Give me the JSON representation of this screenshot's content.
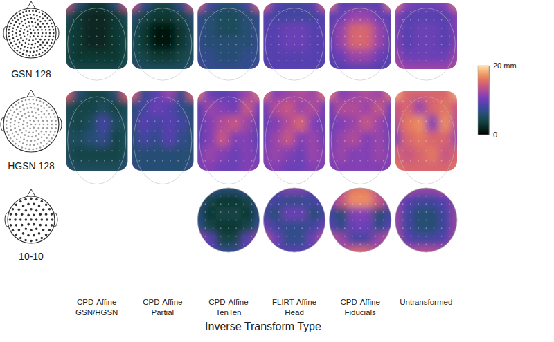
{
  "chart_data": {
    "type": "heatmap",
    "x_label": "Inverse Transform Type",
    "columns": [
      [
        "CPD-Affine",
        "GSN/HGSN"
      ],
      [
        "CPD-Affine",
        "Partial"
      ],
      [
        "CPD-Affine",
        "TenTen"
      ],
      [
        "FLIRT-Affine",
        "Head"
      ],
      [
        "CPD-Affine",
        "Fiducials"
      ],
      [
        "Untransformed"
      ]
    ],
    "color_range": [
      0,
      20
    ],
    "color_ticks": [
      0,
      {
        "value": 20,
        "label": "20 mm"
      }
    ],
    "rows": [
      {
        "name": "GSN 128",
        "maps": [
          [
            [
              14,
              6,
              3,
              3,
              6,
              14
            ],
            [
              5,
              3,
              2,
              2,
              3,
              5
            ],
            [
              4,
              3,
              2,
              2,
              3,
              4
            ],
            [
              4,
              3,
              2,
              2,
              3,
              4
            ],
            [
              4,
              3,
              3,
              3,
              3,
              4
            ],
            [
              5,
              4,
              4,
              4,
              4,
              5
            ]
          ],
          [
            [
              14,
              7,
              4,
              4,
              7,
              14
            ],
            [
              6,
              4,
              3,
              3,
              4,
              6
            ],
            [
              5,
              3,
              1,
              1,
              3,
              5
            ],
            [
              5,
              3,
              1,
              1,
              3,
              5
            ],
            [
              5,
              4,
              3,
              3,
              4,
              5
            ],
            [
              6,
              5,
              5,
              5,
              5,
              6
            ]
          ],
          [
            [
              15,
              8,
              6,
              6,
              8,
              15
            ],
            [
              7,
              6,
              5,
              5,
              6,
              7
            ],
            [
              7,
              6,
              5,
              5,
              6,
              7
            ],
            [
              7,
              6,
              6,
              6,
              6,
              7
            ],
            [
              7,
              7,
              6,
              6,
              7,
              7
            ],
            [
              8,
              7,
              7,
              7,
              7,
              8
            ]
          ],
          [
            [
              15,
              9,
              8,
              8,
              9,
              15
            ],
            [
              9,
              8,
              8,
              8,
              8,
              9
            ],
            [
              9,
              9,
              10,
              10,
              9,
              9
            ],
            [
              9,
              9,
              10,
              10,
              9,
              9
            ],
            [
              9,
              9,
              9,
              9,
              9,
              9
            ],
            [
              9,
              9,
              9,
              9,
              9,
              9
            ]
          ],
          [
            [
              16,
              9,
              9,
              9,
              9,
              16
            ],
            [
              9,
              10,
              12,
              12,
              10,
              9
            ],
            [
              9,
              12,
              15,
              15,
              12,
              9
            ],
            [
              9,
              12,
              15,
              15,
              12,
              9
            ],
            [
              9,
              10,
              12,
              12,
              10,
              9
            ],
            [
              9,
              9,
              9,
              9,
              9,
              9
            ]
          ],
          [
            [
              16,
              11,
              10,
              10,
              11,
              16
            ],
            [
              11,
              9,
              9,
              9,
              9,
              11
            ],
            [
              11,
              9,
              10,
              10,
              9,
              11
            ],
            [
              11,
              9,
              10,
              10,
              9,
              11
            ],
            [
              12,
              10,
              10,
              10,
              10,
              12
            ],
            [
              13,
              12,
              12,
              12,
              12,
              13
            ]
          ]
        ]
      },
      {
        "name": "HGSN 128",
        "maps": [
          [
            [
              15,
              6,
              4,
              4,
              6,
              15
            ],
            [
              5,
              4,
              4,
              5,
              4,
              5
            ],
            [
              5,
              4,
              5,
              8,
              5,
              5
            ],
            [
              5,
              5,
              6,
              7,
              4,
              5
            ],
            [
              5,
              4,
              4,
              4,
              4,
              5
            ],
            [
              6,
              5,
              5,
              5,
              5,
              6
            ]
          ],
          [
            [
              15,
              7,
              9,
              12,
              7,
              15
            ],
            [
              6,
              8,
              10,
              9,
              7,
              6
            ],
            [
              6,
              9,
              8,
              9,
              8,
              6
            ],
            [
              6,
              8,
              7,
              9,
              7,
              6
            ],
            [
              6,
              6,
              6,
              6,
              6,
              6
            ],
            [
              7,
              6,
              6,
              6,
              6,
              7
            ]
          ],
          [
            [
              16,
              10,
              9,
              10,
              12,
              16
            ],
            [
              9,
              12,
              11,
              10,
              14,
              10
            ],
            [
              9,
              11,
              13,
              14,
              12,
              9
            ],
            [
              9,
              11,
              14,
              11,
              11,
              9
            ],
            [
              10,
              12,
              11,
              10,
              11,
              10
            ],
            [
              11,
              11,
              10,
              10,
              11,
              11
            ]
          ],
          [
            [
              16,
              11,
              12,
              13,
              12,
              16
            ],
            [
              10,
              13,
              14,
              12,
              13,
              10
            ],
            [
              10,
              11,
              13,
              15,
              11,
              10
            ],
            [
              10,
              12,
              14,
              11,
              12,
              10
            ],
            [
              11,
              12,
              11,
              10,
              12,
              11
            ],
            [
              11,
              11,
              10,
              10,
              11,
              11
            ]
          ],
          [
            [
              16,
              11,
              12,
              13,
              12,
              16
            ],
            [
              10,
              13,
              13,
              12,
              14,
              10
            ],
            [
              10,
              11,
              12,
              14,
              12,
              10
            ],
            [
              10,
              12,
              13,
              11,
              12,
              10
            ],
            [
              11,
              12,
              11,
              11,
              12,
              11
            ],
            [
              11,
              11,
              11,
              11,
              11,
              11
            ]
          ],
          [
            [
              18,
              15,
              15,
              15,
              15,
              18
            ],
            [
              14,
              15,
              12,
              15,
              16,
              14
            ],
            [
              13,
              16,
              17,
              11,
              17,
              13
            ],
            [
              11,
              15,
              16,
              15,
              15,
              12
            ],
            [
              15,
              14,
              15,
              16,
              14,
              15
            ],
            [
              16,
              15,
              15,
              15,
              15,
              16
            ]
          ]
        ]
      },
      {
        "name": "10-10",
        "maps": [
          null,
          null,
          [
            [
              8,
              7,
              6,
              6,
              7,
              8
            ],
            [
              7,
              4,
              3,
              3,
              4,
              7
            ],
            [
              6,
              3,
              4,
              4,
              3,
              6
            ],
            [
              7,
              4,
              3,
              3,
              4,
              7
            ],
            [
              12,
              9,
              4,
              4,
              9,
              12
            ],
            [
              8,
              9,
              7,
              7,
              9,
              8
            ]
          ],
          [
            [
              8,
              9,
              11,
              11,
              9,
              8
            ],
            [
              9,
              8,
              7,
              7,
              8,
              9
            ],
            [
              8,
              6,
              10,
              10,
              6,
              8
            ],
            [
              10,
              8,
              7,
              7,
              8,
              10
            ],
            [
              14,
              10,
              7,
              7,
              10,
              14
            ],
            [
              8,
              9,
              9,
              9,
              9,
              8
            ]
          ],
          [
            [
              9,
              13,
              16,
              16,
              13,
              9
            ],
            [
              10,
              14,
              17,
              17,
              14,
              10
            ],
            [
              8,
              6,
              11,
              11,
              6,
              8
            ],
            [
              9,
              7,
              10,
              10,
              7,
              9
            ],
            [
              14,
              12,
              8,
              8,
              12,
              14
            ],
            [
              8,
              13,
              15,
              15,
              13,
              8
            ]
          ],
          [
            [
              14,
              13,
              12,
              12,
              13,
              14
            ],
            [
              12,
              9,
              8,
              8,
              9,
              12
            ],
            [
              12,
              8,
              6,
              6,
              8,
              12
            ],
            [
              12,
              8,
              6,
              6,
              8,
              12
            ],
            [
              13,
              9,
              8,
              8,
              9,
              13
            ],
            [
              14,
              13,
              13,
              13,
              13,
              14
            ]
          ]
        ]
      }
    ]
  }
}
